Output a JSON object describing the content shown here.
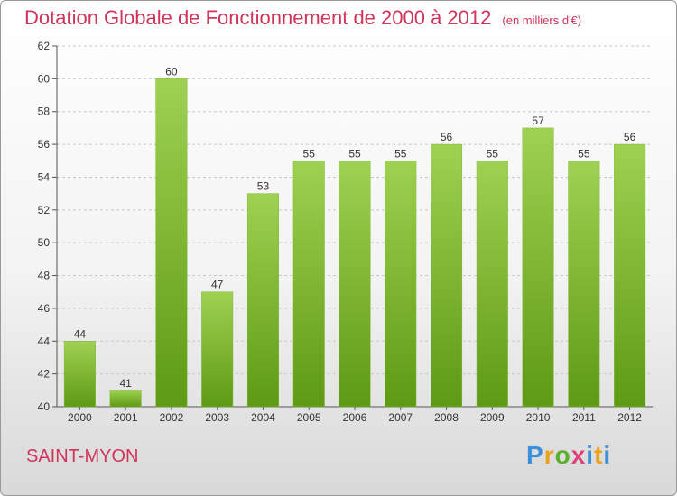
{
  "header": {
    "title": "Dotation Globale de Fonctionnement de 2000 à 2012",
    "subtitle": "(en milliers d'€)"
  },
  "footer": {
    "commune": "SAINT-MYON",
    "brand": "Proxiti"
  },
  "colors": {
    "accent": "#d0345a",
    "bar_top": "#9fd152",
    "bar_bottom": "#5e9a14"
  },
  "chart_data": {
    "type": "bar",
    "categories": [
      "2000",
      "2001",
      "2002",
      "2003",
      "2004",
      "2005",
      "2006",
      "2007",
      "2008",
      "2009",
      "2010",
      "2011",
      "2012"
    ],
    "values": [
      44,
      41,
      60,
      47,
      53,
      55,
      55,
      55,
      56,
      55,
      57,
      55,
      56
    ],
    "title": "Dotation Globale de Fonctionnement de 2000 à 2012",
    "subtitle": "(en milliers d'€)",
    "ylim": [
      40,
      62
    ],
    "yticks": [
      40,
      42,
      44,
      46,
      48,
      50,
      52,
      54,
      56,
      58,
      60,
      62
    ],
    "grid": true
  }
}
